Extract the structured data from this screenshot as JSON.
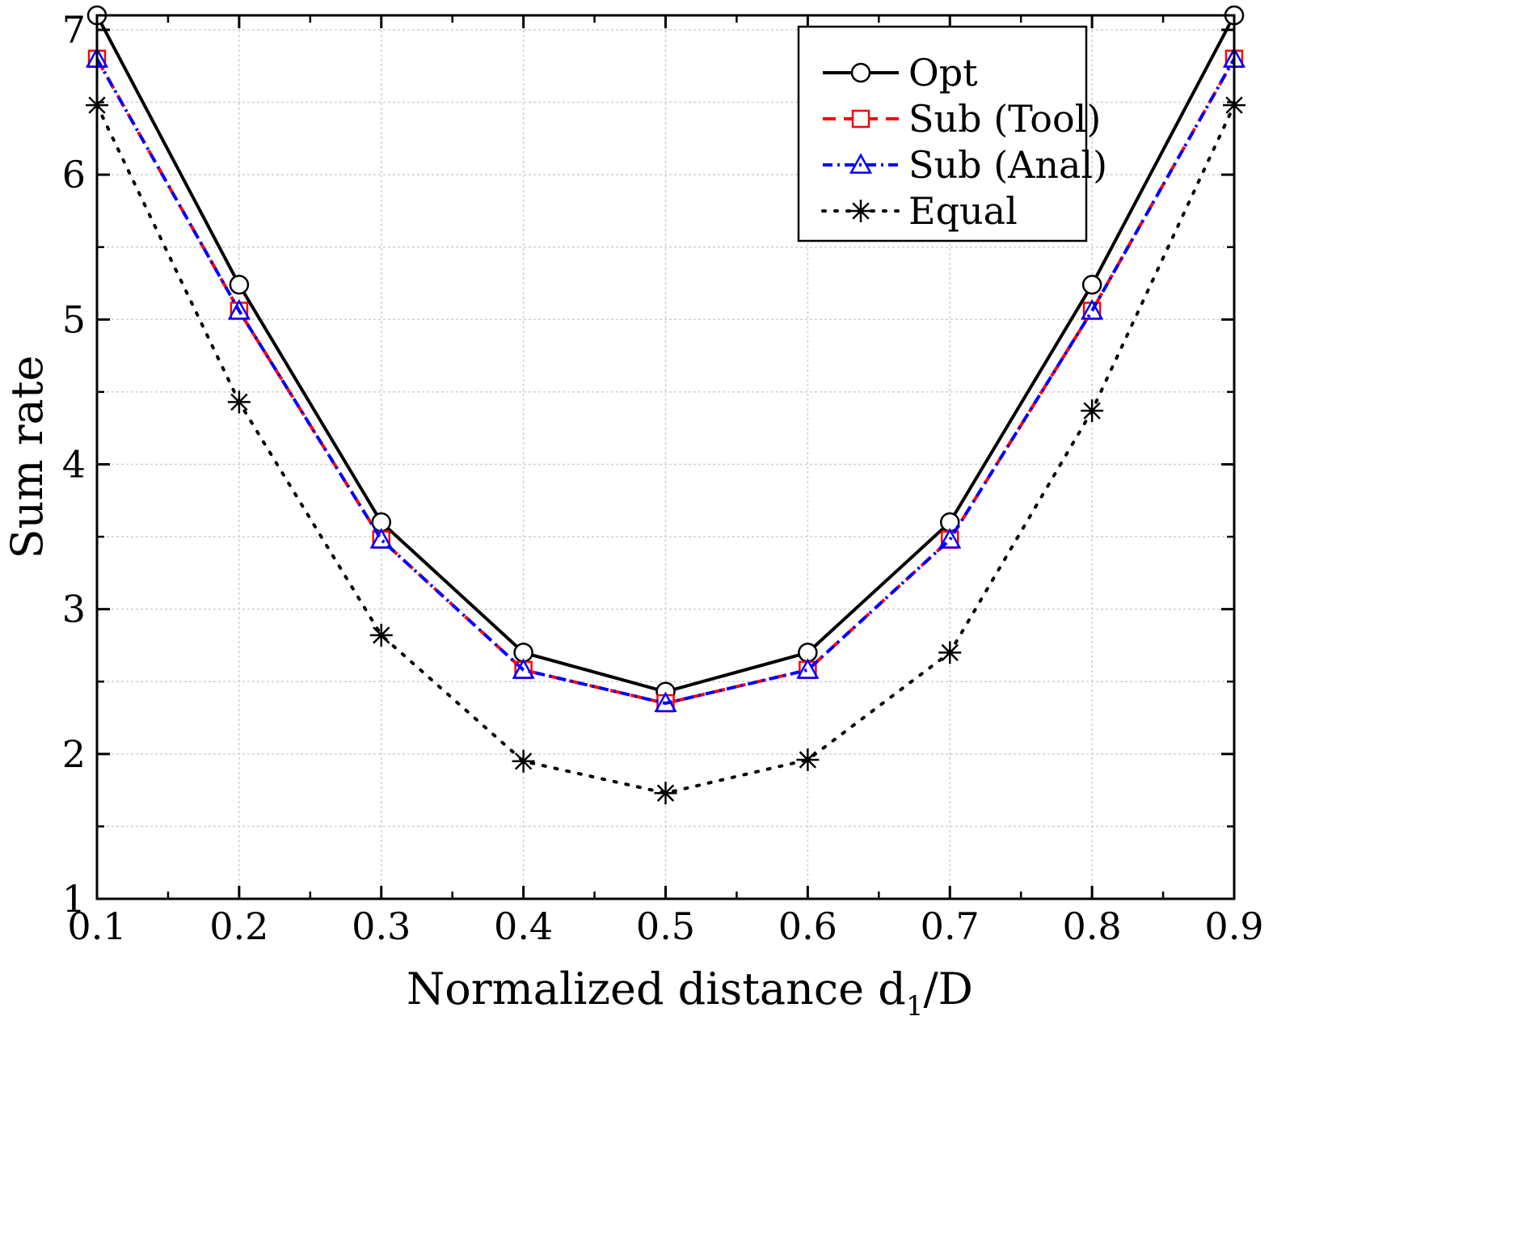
{
  "chart_data": {
    "type": "line",
    "title": "",
    "xlabel": {
      "main": "Normalized distance d",
      "subscript": "1",
      "suffix": "/D"
    },
    "ylabel": "Sum rate",
    "xlim": [
      0.1,
      0.9
    ],
    "ylim": [
      1,
      7.1
    ],
    "x": [
      0.1,
      0.2,
      0.3,
      0.4,
      0.5,
      0.6,
      0.7,
      0.8,
      0.9
    ],
    "xticks": [
      "0.1",
      "0.2",
      "0.3",
      "0.4",
      "0.5",
      "0.6",
      "0.7",
      "0.8",
      "0.9"
    ],
    "yticks": [
      "1",
      "2",
      "3",
      "4",
      "5",
      "6",
      "7"
    ],
    "grid": true,
    "legend_position": "top-right",
    "series": [
      {
        "name": "Opt",
        "color": "#000000",
        "line_style": "solid",
        "marker": "circle",
        "values": [
          7.1,
          5.24,
          3.6,
          2.7,
          2.43,
          2.7,
          3.6,
          5.24,
          7.1
        ]
      },
      {
        "name": "Sub (Tool)",
        "color": "#ff0000",
        "line_style": "dashed",
        "marker": "square",
        "values": [
          6.8,
          5.06,
          3.48,
          2.58,
          2.35,
          2.58,
          3.48,
          5.06,
          6.8
        ]
      },
      {
        "name": "Sub (Anal)",
        "color": "#0000ff",
        "line_style": "dash-dot",
        "marker": "triangle",
        "values": [
          6.8,
          5.06,
          3.48,
          2.58,
          2.35,
          2.58,
          3.48,
          5.06,
          6.8
        ]
      },
      {
        "name": "Equal",
        "color": "#000000",
        "line_style": "dotted",
        "marker": "asterisk",
        "values": [
          6.48,
          4.43,
          2.82,
          1.95,
          1.73,
          1.96,
          2.7,
          4.37,
          6.48
        ]
      }
    ]
  }
}
